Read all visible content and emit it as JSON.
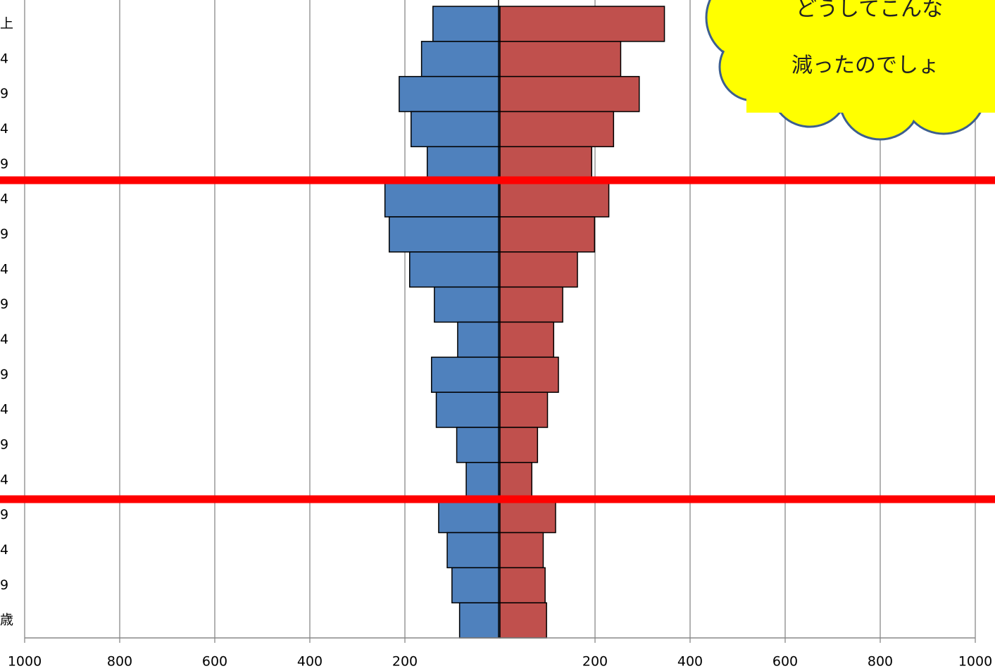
{
  "chart_data": {
    "type": "pyramid",
    "categories": [
      "上",
      "4",
      "9",
      "4",
      "9",
      "4",
      "9",
      "4",
      "9",
      "4",
      "9",
      "4",
      "9",
      "4",
      "9",
      "4",
      "9",
      "歳"
    ],
    "series": [
      {
        "color": "#4f81bd",
        "values": [
          -141,
          -165,
          -212,
          -187,
          -153,
          -242,
          -233,
          -190,
          -138,
          -89,
          -144,
          -134,
          -91,
          -71,
          -129,
          -111,
          -101,
          -85
        ]
      },
      {
        "color": "#c0504d",
        "values": [
          346,
          254,
          293,
          239,
          193,
          229,
          199,
          163,
          132,
          113,
          123,
          100,
          79,
          67,
          117,
          91,
          95,
          98
        ]
      }
    ],
    "xlim": [
      -1000,
      1000
    ],
    "xticks": [
      {
        "value": -1000,
        "label": "1000"
      },
      {
        "value": -800,
        "label": "800"
      },
      {
        "value": -600,
        "label": "600"
      },
      {
        "value": -400,
        "label": "400"
      },
      {
        "value": -200,
        "label": "200"
      },
      200,
      400,
      600,
      800,
      1000
    ],
    "grid": true,
    "annotation": [
      "どうしてこんな",
      "減ったのでしょ"
    ]
  }
}
